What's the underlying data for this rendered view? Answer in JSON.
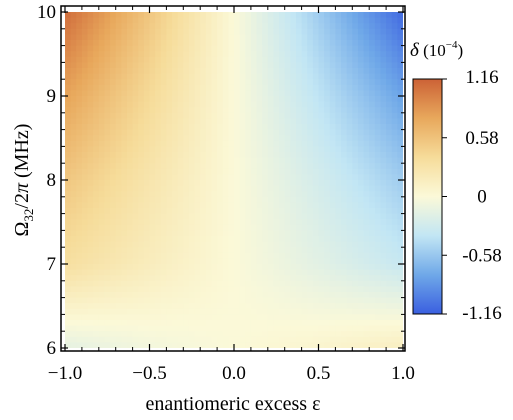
{
  "chart_data": {
    "type": "heatmap",
    "xlabel": "enantiomeric excess ε",
    "ylabel": "Ω32 / 2π (MHz)",
    "ylabel_parts": {
      "greek": "Ω",
      "sub": "32",
      "rest": "/2",
      "pi": "π",
      "unit": " (MHz)"
    },
    "xlim": [
      -1.0,
      1.0
    ],
    "ylim": [
      5.95,
      10.05
    ],
    "xticks": [
      -1.0,
      -0.5,
      0.0,
      0.5,
      1.0
    ],
    "xtick_labels": [
      "−1.0",
      "−0.5",
      "0.0",
      "0.5",
      "1.0"
    ],
    "yticks": [
      6,
      7,
      8,
      9,
      10
    ],
    "ytick_labels": [
      "6",
      "7",
      "8",
      "9",
      "10"
    ],
    "colorbar": {
      "label": "δ (10⁻⁴)",
      "label_parts": {
        "symbol": "δ",
        "base": " (10",
        "exp": "−4",
        "close": ")"
      },
      "range": [
        -1.16,
        1.16
      ],
      "ticks": [
        1.16,
        0.58,
        0,
        -0.58,
        -1.16
      ],
      "tick_labels": [
        "1.16",
        "0.58",
        "0",
        "-0.58",
        "-1.16"
      ],
      "colormap": [
        "#3a5fe0",
        "#6fa8e8",
        "#c2e6f4",
        "#fbf9d8",
        "#f6dc9a",
        "#e8a85c",
        "#cc6236"
      ]
    },
    "field_samples": {
      "description_of_values": "delta (10^-4) sampled on a grid of epsilon (columns) and Omega32/2pi in MHz (rows)",
      "x": [
        -1.0,
        -0.5,
        0.0,
        0.5,
        1.0
      ],
      "y": [
        6.0,
        7.0,
        8.0,
        9.0,
        10.0
      ],
      "values": [
        [
          -0.15,
          -0.06,
          0.0,
          0.06,
          0.15
        ],
        [
          0.35,
          0.17,
          0.0,
          -0.17,
          -0.35
        ],
        [
          0.55,
          0.27,
          0.0,
          -0.27,
          -0.55
        ],
        [
          0.8,
          0.4,
          0.0,
          -0.4,
          -0.8
        ],
        [
          1.1,
          0.55,
          0.0,
          -0.55,
          -1.1
        ]
      ]
    }
  }
}
